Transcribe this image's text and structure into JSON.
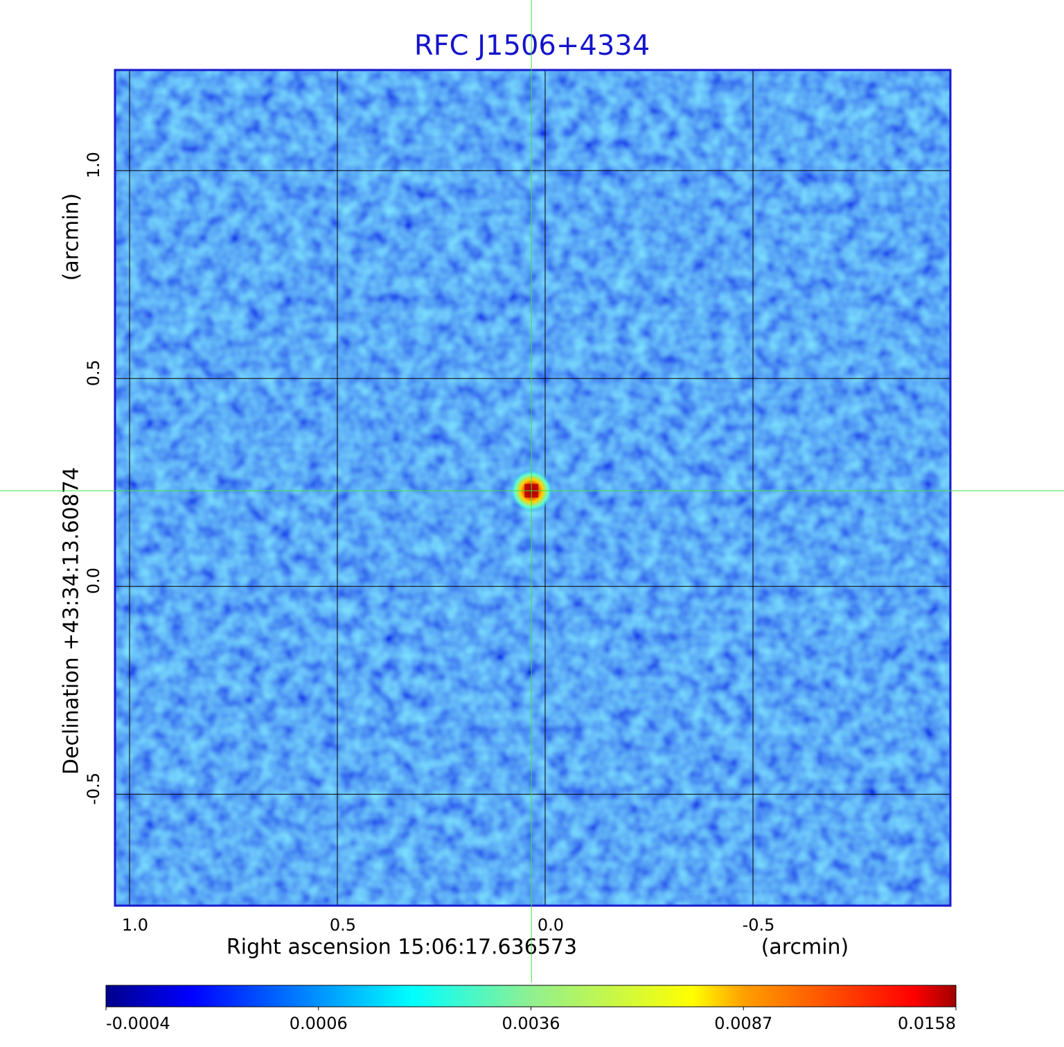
{
  "chart_data": {
    "type": "image",
    "title": "RFC J1506+4334",
    "x_label": "Right ascension  15:06:17.636573",
    "x_unit": "(arcmin)",
    "y_label": "Declination  +43:34:13.60874",
    "y_unit": "(arcmin)",
    "xlim": [
      1.035,
      -0.975
    ],
    "ylim": [
      -0.768,
      1.242
    ],
    "xticks": [
      {
        "value": 1,
        "label": "1.0"
      },
      0.5,
      {
        "value": 0,
        "label": "0.0"
      },
      -0.5
    ],
    "yticks": [
      -0.5,
      {
        "value": 0,
        "label": "0.0"
      },
      0.5,
      {
        "value": 1,
        "label": "1.0"
      }
    ],
    "grid": true,
    "crosshair": {
      "x": 0.033,
      "y": 0.23
    },
    "source": {
      "x": 0.033,
      "y": 0.23,
      "peak": 0.0158
    },
    "colormap": "jet",
    "colorbar_ticks": [
      -0.0004,
      0.0006,
      0.0036,
      0.0087,
      0.0158
    ]
  }
}
